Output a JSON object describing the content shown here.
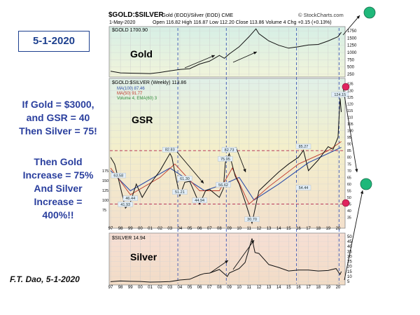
{
  "date_label": "5-1-2020",
  "notes": {
    "scenario": [
      "If Gold = $3000,",
      "and GSR = 40",
      "Then Silver = 75!"
    ],
    "conclusion": [
      "Then Gold",
      "Increase = 75%",
      "And Silver",
      "Increase =",
      "400%!!"
    ]
  },
  "credit": "F.T. Dao, 5-1-2020",
  "header": {
    "title": "$GOLD:$SILVER",
    "subtitle": "Gold (EOD)/Silver (EOD) CME",
    "source": "© StockCharts.com",
    "date": "1-May-2020",
    "quote": "Open 116.82  High 116.87  Low 112.20  Close 113.86  Volume 4  Chg +0.15 (+0.13%)"
  },
  "panels": {
    "gold": {
      "legend": "$GOLD 1700.90",
      "label": "Gold"
    },
    "gsr": {
      "legend": "$GOLD:$SILVER (Weekly) 113.86",
      "ma100": "MA(100) 87.46",
      "ma50": "MA(50) 91.77",
      "volume": "Volume 4, EMA(60) 3",
      "label": "GSR"
    },
    "silver": {
      "legend": "$SILVER 14.94",
      "label": "Silver"
    }
  },
  "colors": {
    "note_text": "#2a3f9e",
    "green_dot": "#1fb87a",
    "red_dot": "#e0245e",
    "gsr_line": "#111111",
    "gsr_ma50": "#c0392b",
    "gsr_ma100": "#2e4ea8"
  },
  "chart_data": [
    {
      "type": "line",
      "name": "Gold",
      "x": [
        1997,
        1998,
        1999,
        2000,
        2001,
        2002,
        2003,
        2004,
        2005,
        2006,
        2007,
        2008,
        2008.5,
        2009,
        2010,
        2011,
        2011.7,
        2012,
        2013,
        2014,
        2015,
        2016,
        2017,
        2018,
        2019,
        2020,
        2020.33
      ],
      "y": [
        350,
        295,
        285,
        280,
        270,
        310,
        365,
        410,
        440,
        600,
        700,
        900,
        800,
        950,
        1200,
        1550,
        1820,
        1650,
        1400,
        1250,
        1150,
        1200,
        1260,
        1280,
        1400,
        1550,
        1700
      ],
      "y_ticks": [
        250,
        500,
        750,
        1000,
        1250,
        1500,
        1750
      ],
      "ylim": [
        200,
        1850
      ]
    },
    {
      "type": "line",
      "name": "GSR",
      "x": [
        1997,
        1997.4,
        1997.8,
        1998.5,
        1999,
        1999.6,
        2000.2,
        2001,
        2002,
        2003,
        2003.2,
        2003.6,
        2004,
        2004.5,
        2005,
        2006,
        2006.6,
        2007,
        2008,
        2008.4,
        2008.6,
        2009,
        2009.6,
        2010,
        2010.6,
        2011.3,
        2012,
        2013,
        2014,
        2015,
        2016,
        2016.5,
        2017,
        2018,
        2019,
        2019.5,
        2020,
        2020.2,
        2020.33
      ],
      "y": [
        80,
        75,
        63.58,
        41.93,
        46.44,
        60,
        50,
        60,
        70,
        82.83,
        80,
        65,
        51.21,
        61.3,
        62,
        44.94,
        55,
        56,
        50,
        56.62,
        75.95,
        82.73,
        66,
        60,
        47,
        30.7,
        55,
        62,
        69,
        75,
        80,
        85.27,
        70,
        78,
        88,
        86,
        95,
        124.15,
        113.86
      ],
      "labels": [
        {
          "x": 1997.8,
          "y": 63.58,
          "text": "63.58"
        },
        {
          "x": 1998.5,
          "y": 41.93,
          "text": "41.93"
        },
        {
          "x": 1999,
          "y": 46.44,
          "text": "46.44"
        },
        {
          "x": 2003,
          "y": 82.83,
          "text": "82.83"
        },
        {
          "x": 2004,
          "y": 51.21,
          "text": "51.21"
        },
        {
          "x": 2004.5,
          "y": 61.3,
          "text": "61.30"
        },
        {
          "x": 2006,
          "y": 44.94,
          "text": "44.94"
        },
        {
          "x": 2008.4,
          "y": 56.62,
          "text": "56.62"
        },
        {
          "x": 2008.6,
          "y": 75.95,
          "text": "75.95"
        },
        {
          "x": 2009,
          "y": 82.73,
          "text": "82.73"
        },
        {
          "x": 2011.3,
          "y": 30.7,
          "text": "30.70"
        },
        {
          "x": 2016.5,
          "y": 85.27,
          "text": "85.27"
        },
        {
          "x": 2016.5,
          "y": 54.44,
          "text": "54.44"
        },
        {
          "x": 2020.2,
          "y": 124.15,
          "text": "124.15"
        }
      ],
      "ma50": [
        [
          1997,
          72
        ],
        [
          1999,
          52
        ],
        [
          2002,
          65
        ],
        [
          2003.5,
          75
        ],
        [
          2006,
          55
        ],
        [
          2008,
          55
        ],
        [
          2009.3,
          72
        ],
        [
          2011,
          45
        ],
        [
          2013,
          58
        ],
        [
          2016,
          75
        ],
        [
          2019,
          85
        ],
        [
          2020.33,
          91.77
        ]
      ],
      "ma100": [
        [
          1997,
          70
        ],
        [
          1999,
          55
        ],
        [
          2003,
          72
        ],
        [
          2006.5,
          55
        ],
        [
          2008.5,
          60
        ],
        [
          2010,
          65
        ],
        [
          2011.5,
          48
        ],
        [
          2014,
          60
        ],
        [
          2017,
          76
        ],
        [
          2020.33,
          87.46
        ]
      ],
      "y_ticks": [
        35,
        40,
        45,
        50,
        55,
        60,
        65,
        70,
        75,
        80,
        85,
        90,
        95,
        100,
        105,
        110,
        115,
        120,
        125,
        130,
        135
      ],
      "left_ticks": [
        75,
        100,
        125,
        150,
        175
      ],
      "ylim": [
        28,
        138
      ],
      "hlines": [
        85,
        45
      ]
    },
    {
      "type": "line",
      "name": "Silver",
      "x": [
        1997,
        1998,
        1999,
        2000,
        2001,
        2002,
        2003,
        2004,
        2005,
        2006,
        2006.5,
        2007,
        2008,
        2008.8,
        2009,
        2010,
        2010.6,
        2011.3,
        2011.6,
        2012,
        2013,
        2014,
        2015,
        2016,
        2017,
        2018,
        2019,
        2019.8,
        2020.2,
        2020.33
      ],
      "y": [
        4.8,
        5.5,
        5.2,
        5.0,
        4.4,
        4.6,
        4.9,
        6.5,
        7.3,
        11.5,
        13,
        13.4,
        17,
        10,
        13.5,
        18,
        24,
        48,
        34,
        33,
        22,
        19,
        15.5,
        16.5,
        16.5,
        15.5,
        16,
        18,
        12,
        14.94
      ],
      "y_ticks": [
        5,
        10,
        15,
        20,
        25,
        30,
        35,
        40,
        45,
        50
      ],
      "ylim": [
        3,
        52
      ]
    }
  ],
  "x_ticks": [
    "97",
    "98",
    "99",
    "00",
    "01",
    "02",
    "03",
    "04",
    "05",
    "06",
    "07",
    "08",
    "09",
    "10",
    "11",
    "12",
    "13",
    "14",
    "15",
    "16",
    "17",
    "18",
    "19",
    "20"
  ],
  "cycle_lines": [
    2003.8,
    2008.7,
    2015.8,
    2020.1
  ]
}
